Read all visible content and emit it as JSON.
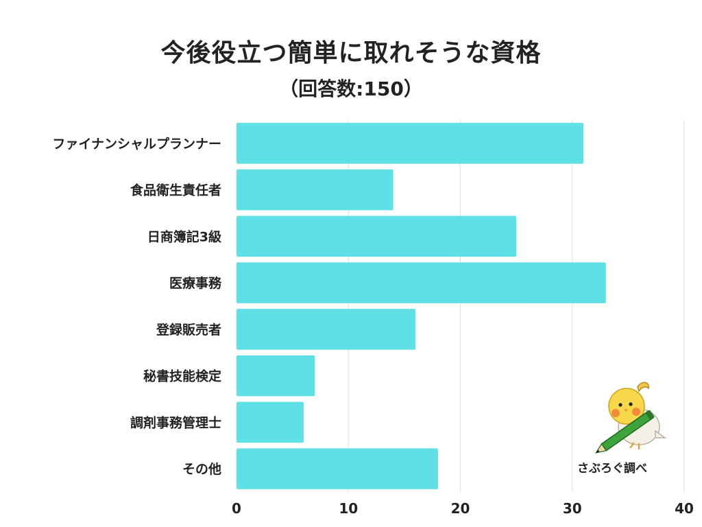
{
  "header": {
    "title": "今後役立つ簡単に取れそうな資格",
    "subtitle": "（回答数:150）"
  },
  "credit": "さぶろぐ調べ",
  "colors": {
    "bar": "#5fe0e6",
    "grid": "#dddddd",
    "text": "#222222"
  },
  "mascot": {
    "icon": "bird-with-pencil-icon"
  },
  "chart_data": {
    "type": "bar",
    "orientation": "horizontal",
    "categories": [
      "ファイナンシャルプランナー",
      "食品衛生責任者",
      "日商簿記3級",
      "医療事務",
      "登録販売者",
      "秘書技能検定",
      "調剤事務管理士",
      "その他"
    ],
    "values": [
      31,
      14,
      25,
      33,
      16,
      7,
      6,
      18
    ],
    "xlim": [
      0,
      40
    ],
    "xticks": [
      0,
      10,
      20,
      30,
      40
    ],
    "grid": true
  }
}
